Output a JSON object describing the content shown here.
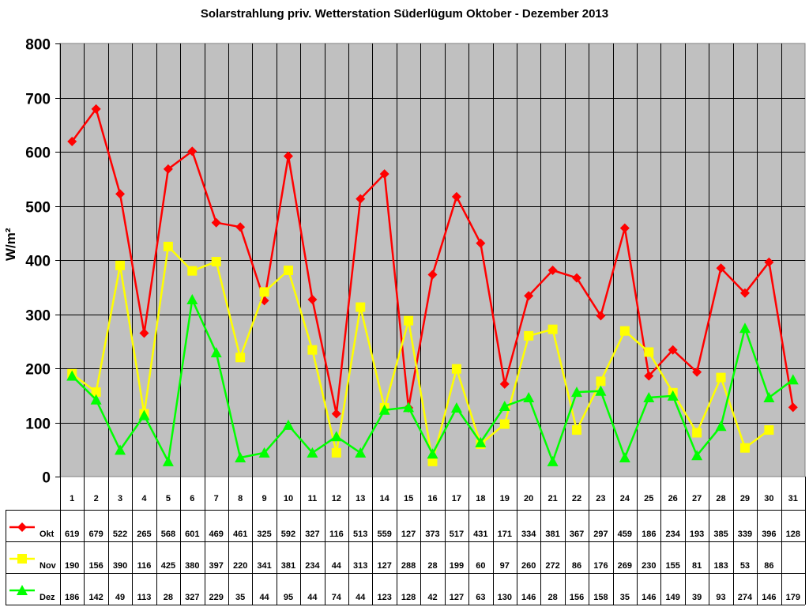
{
  "chart_data": {
    "type": "line",
    "title": "Solarstrahlung priv. Wetterstation Süderlügum Oktober - Dezember 2013",
    "xlabel": "",
    "ylabel": "W/m²",
    "ylim": [
      0,
      800
    ],
    "yticks": [
      0,
      100,
      200,
      300,
      400,
      500,
      600,
      700,
      800
    ],
    "grid": true,
    "legend_position": "data-table-left",
    "categories": [
      "1",
      "2",
      "3",
      "4",
      "5",
      "6",
      "7",
      "8",
      "9",
      "10",
      "11",
      "12",
      "13",
      "14",
      "15",
      "16",
      "17",
      "18",
      "19",
      "20",
      "21",
      "22",
      "23",
      "24",
      "25",
      "26",
      "27",
      "28",
      "29",
      "30",
      "31"
    ],
    "series": [
      {
        "name": "Okt",
        "color": "#ff0000",
        "marker": "diamond",
        "values": [
          619,
          679,
          522,
          265,
          568,
          601,
          469,
          461,
          325,
          592,
          327,
          116,
          513,
          559,
          127,
          373,
          517,
          431,
          171,
          334,
          381,
          367,
          297,
          459,
          186,
          234,
          193,
          385,
          339,
          396,
          128
        ]
      },
      {
        "name": "Nov",
        "color": "#ffff00",
        "marker": "square",
        "values": [
          190,
          156,
          390,
          116,
          425,
          380,
          397,
          220,
          341,
          381,
          234,
          44,
          313,
          127,
          288,
          28,
          199,
          60,
          97,
          260,
          272,
          86,
          176,
          269,
          230,
          155,
          81,
          183,
          53,
          86,
          null
        ]
      },
      {
        "name": "Dez",
        "color": "#00ff00",
        "marker": "triangle",
        "values": [
          186,
          142,
          49,
          113,
          28,
          327,
          229,
          35,
          44,
          95,
          44,
          74,
          44,
          123,
          128,
          42,
          127,
          63,
          130,
          146,
          28,
          156,
          158,
          35,
          146,
          149,
          39,
          93,
          274,
          146,
          179
        ]
      }
    ]
  },
  "plot": {
    "background": "#c0c0c0"
  }
}
